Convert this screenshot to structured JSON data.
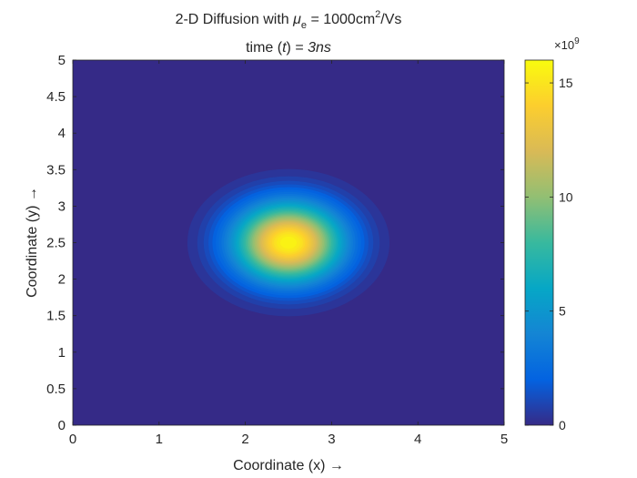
{
  "chart_data": {
    "type": "heatmap",
    "title": {
      "line1_prefix": "2-D Diffusion with ",
      "line1_mu": "μ",
      "line1_mu_sub": "e",
      "line1_mid": " = 1000cm",
      "line1_sup": "2",
      "line1_suffix": "/Vs",
      "line2_prefix": "time (",
      "line2_t": "t",
      "line2_mid": ") = ",
      "line2_val": "3ns"
    },
    "xlabel": "Coordinate (x) →",
    "ylabel": "Coordinate (y) →",
    "xlim": [
      0,
      5
    ],
    "ylim": [
      0,
      5
    ],
    "xticks": [
      0,
      1,
      2,
      3,
      4,
      5
    ],
    "yticks": [
      0,
      0.5,
      1,
      1.5,
      2,
      2.5,
      3,
      3.5,
      4,
      4.5,
      5
    ],
    "xtick_labels": [
      "0",
      "1",
      "2",
      "3",
      "4",
      "5"
    ],
    "ytick_labels": [
      "0",
      "0.5",
      "1",
      "1.5",
      "2",
      "2.5",
      "3",
      "3.5",
      "4",
      "4.5",
      "5"
    ],
    "peak": {
      "x": 2.5,
      "y": 2.5,
      "value": 16000000000
    },
    "spread": {
      "sigma_x": 0.43,
      "sigma_y": 0.37
    },
    "colormap": "parula",
    "colorbar": {
      "range": [
        0,
        16000000000
      ],
      "ticks": [
        0,
        5,
        10,
        15
      ],
      "tick_labels": [
        "0",
        "5",
        "10",
        "15"
      ],
      "exponent_base": "×10",
      "exponent": "9"
    },
    "grid": false
  }
}
